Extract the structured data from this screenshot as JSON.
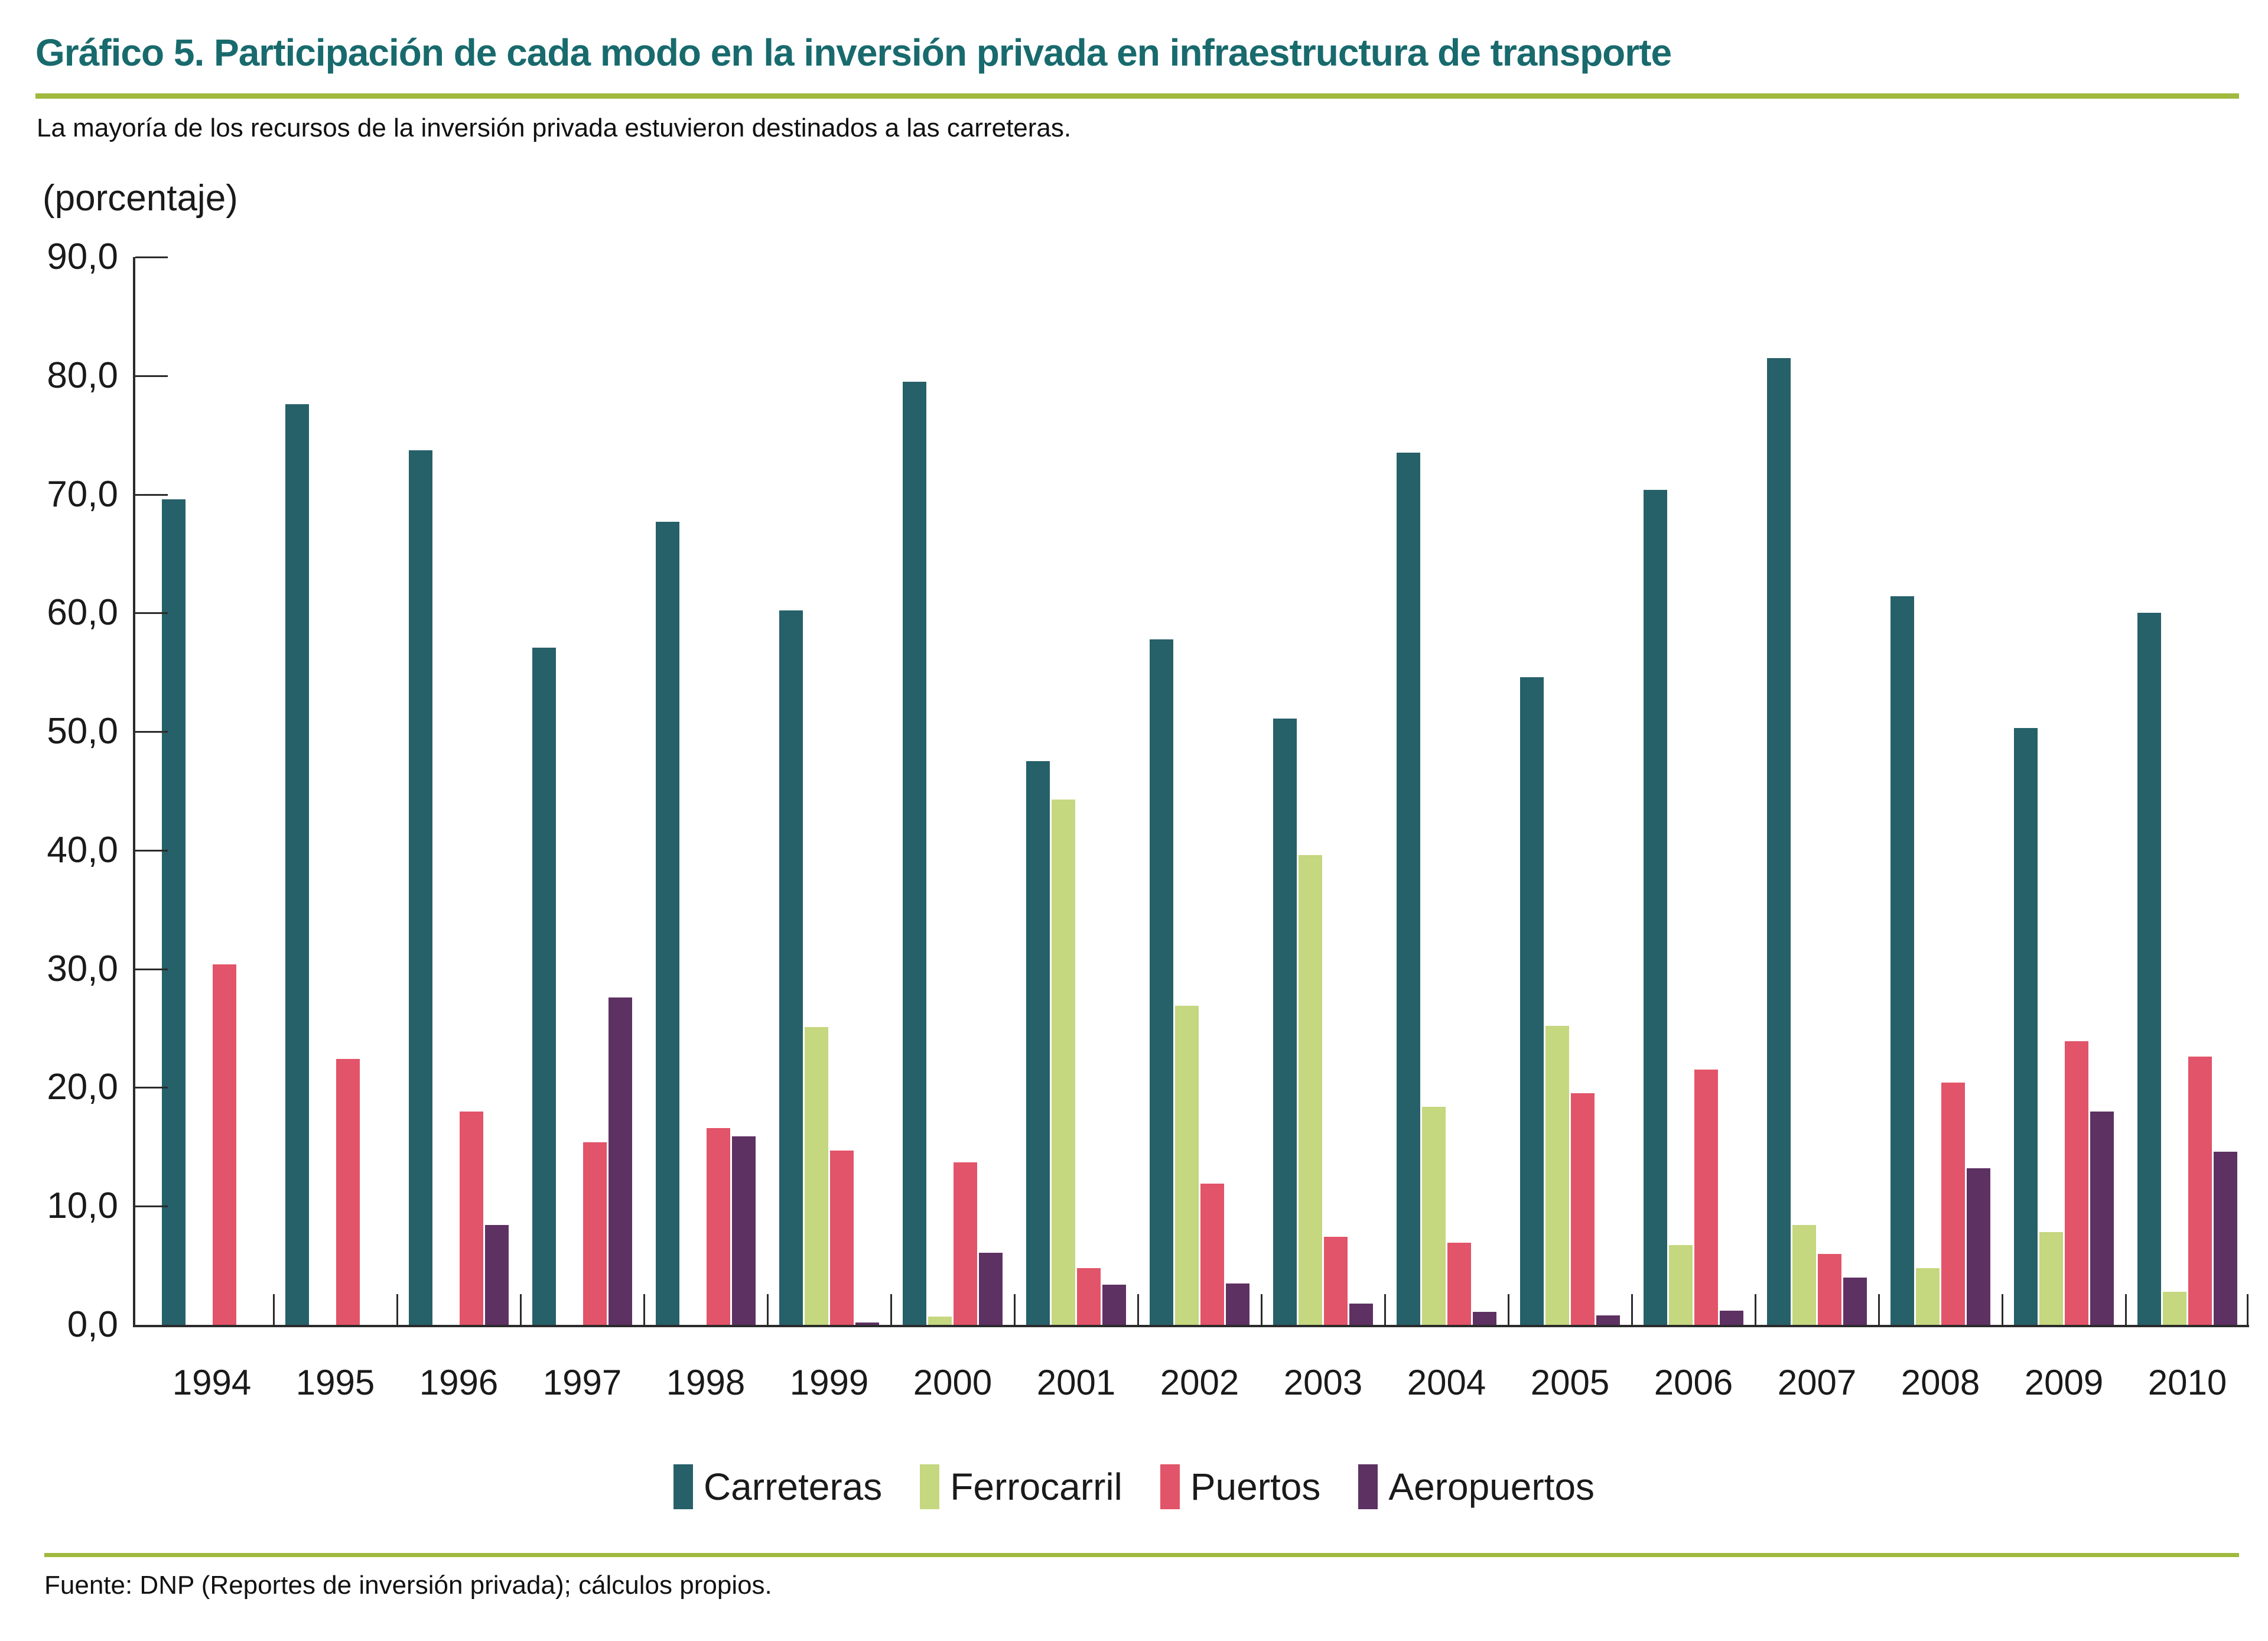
{
  "header": {
    "title": "Gráfico 5. Participación de cada modo en la inversión privada en infraestructura de transporte",
    "subtitle": "La mayoría de los recursos de la inversión privada estuvieron destinados a las carreteras."
  },
  "chart_data": {
    "type": "bar",
    "title": "Gráfico 5. Participación de cada modo en la inversión privada en infraestructura de transporte",
    "unit_label": "(porcentaje)",
    "ylabel": "(porcentaje)",
    "xlabel": "",
    "ylim": [
      0,
      90
    ],
    "ytick_step": 10,
    "grid": false,
    "legend_position": "bottom",
    "categories": [
      "1994",
      "1995",
      "1996",
      "1997",
      "1998",
      "1999",
      "2000",
      "2001",
      "2002",
      "2003",
      "2004",
      "2005",
      "2006",
      "2007",
      "2008",
      "2009",
      "2010"
    ],
    "series": [
      {
        "name": "Carreteras",
        "color": "#266069",
        "values": [
          69.6,
          77.6,
          73.7,
          57.1,
          67.7,
          60.2,
          79.5,
          47.5,
          57.8,
          51.1,
          73.5,
          54.6,
          70.4,
          81.5,
          61.4,
          50.3,
          60.0
        ]
      },
      {
        "name": "Ferrocarril",
        "color": "#c5d77f",
        "values": [
          0,
          0,
          0,
          0,
          0,
          25.1,
          0.7,
          44.3,
          26.9,
          39.6,
          18.4,
          25.2,
          6.7,
          8.4,
          4.8,
          7.8,
          2.8
        ]
      },
      {
        "name": "Puertos",
        "color": "#e25469",
        "values": [
          30.4,
          22.4,
          18.0,
          15.4,
          16.6,
          14.7,
          13.7,
          4.8,
          11.9,
          7.4,
          6.9,
          19.5,
          21.5,
          6.0,
          20.4,
          23.9,
          22.6
        ]
      },
      {
        "name": "Aeropuertos",
        "color": "#5e3163",
        "values": [
          0,
          0,
          8.4,
          27.6,
          15.9,
          0.2,
          6.1,
          3.4,
          3.5,
          1.8,
          1.1,
          0.8,
          1.2,
          4.0,
          13.2,
          18.0,
          14.6
        ]
      }
    ]
  },
  "axis": {
    "color": "#2b2b2b",
    "decimal_separator": ","
  },
  "footer": {
    "source": "Fuente: DNP (Reportes de inversión privada); cálculos propios."
  },
  "colors": {
    "title": "#186a6d",
    "rule": "#a0b93e"
  }
}
